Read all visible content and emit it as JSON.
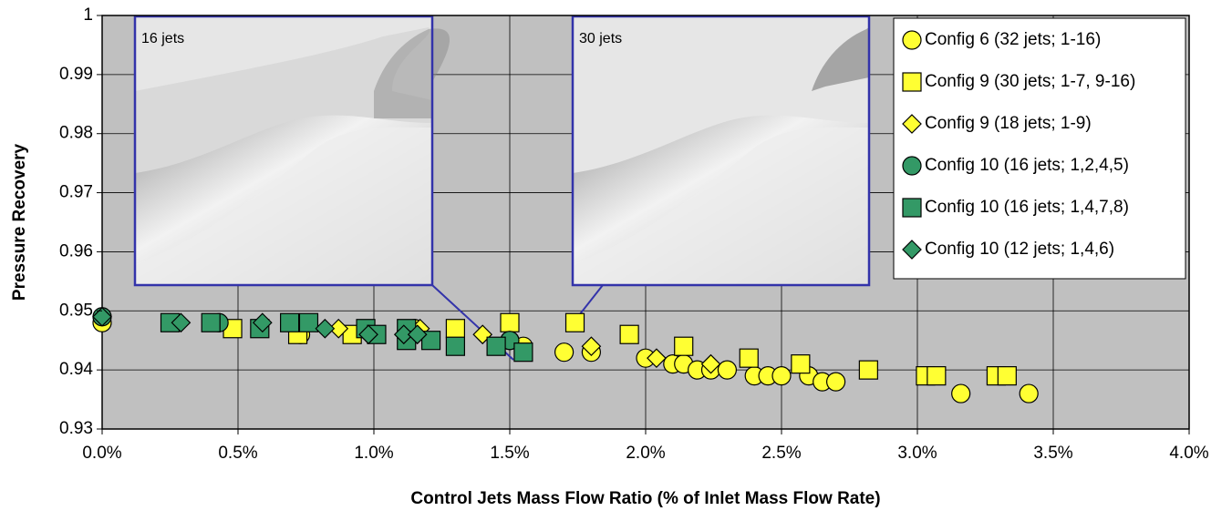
{
  "chart_data": {
    "type": "scatter",
    "x_label": "Control Jets Mass Flow Ratio (% of Inlet Mass Flow Rate)",
    "y_label": "Pressure Recovery",
    "xlim": [
      0,
      4
    ],
    "ylim": [
      0.93,
      1
    ],
    "xticks": [
      {
        "value": 0,
        "label": "0.0%"
      },
      {
        "value": 0.5,
        "label": "0.5%"
      },
      {
        "value": 1,
        "label": "1.0%"
      },
      {
        "value": 1.5,
        "label": "1.5%"
      },
      {
        "value": 2,
        "label": "2.0%"
      },
      {
        "value": 2.5,
        "label": "2.5%"
      },
      {
        "value": 3,
        "label": "3.0%"
      },
      {
        "value": 3.5,
        "label": "3.5%"
      },
      {
        "value": 4,
        "label": "4.0%"
      }
    ],
    "yticks": [
      0.93,
      0.94,
      0.95,
      0.96,
      0.97,
      0.98,
      0.99,
      1
    ],
    "grid": true,
    "legend": "upper right",
    "insets": [
      "16 jets",
      "30 jets"
    ],
    "series": [
      {
        "name": "Config 6 (32 jets; 1-16)",
        "color": "#ffff33",
        "marker": "circle",
        "x": [
          0,
          0.73,
          1.15,
          1.5,
          1.55,
          1.7,
          1.8,
          2.0,
          2.1,
          2.14,
          2.19,
          2.24,
          2.3,
          2.4,
          2.45,
          2.5,
          2.6,
          2.65,
          2.7,
          3.16,
          3.41
        ],
        "values": [
          0.948,
          0.946,
          0.947,
          0.945,
          0.944,
          0.943,
          0.943,
          0.942,
          0.941,
          0.941,
          0.94,
          0.94,
          0.94,
          0.939,
          0.939,
          0.939,
          0.939,
          0.938,
          0.938,
          0.936,
          0.936
        ]
      },
      {
        "name": "Config 9 (30 jets; 1-7, 9-16)",
        "color": "#ffff33",
        "marker": "square",
        "x": [
          0.48,
          0.72,
          0.92,
          1.3,
          1.5,
          1.74,
          1.94,
          2.14,
          2.38,
          2.57,
          2.82,
          3.03,
          3.07,
          3.29,
          3.33
        ],
        "values": [
          0.947,
          0.946,
          0.946,
          0.947,
          0.948,
          0.948,
          0.946,
          0.944,
          0.942,
          0.941,
          0.94,
          0.939,
          0.939,
          0.939,
          0.939
        ]
      },
      {
        "name": "Config 9 (18 jets; 1-9)",
        "color": "#ffff33",
        "marker": "diamond",
        "x": [
          0.87,
          1.17,
          1.4,
          1.8,
          2.04,
          2.24
        ],
        "values": [
          0.947,
          0.947,
          0.946,
          0.944,
          0.942,
          0.941
        ]
      },
      {
        "name": "Config 10 (16 jets; 1,2,4,5)",
        "color": "#339966",
        "marker": "circle",
        "x": [
          0,
          0.43,
          1.5
        ],
        "values": [
          0.949,
          0.948,
          0.945
        ]
      },
      {
        "name": "Config 10 (16 jets; 1,4,7,8)",
        "color": "#339966",
        "marker": "square",
        "x": [
          0.25,
          0.4,
          0.58,
          0.69,
          0.76,
          0.97,
          1.01,
          1.12,
          1.12,
          1.21,
          1.3,
          1.45,
          1.55
        ],
        "values": [
          0.948,
          0.948,
          0.947,
          0.948,
          0.948,
          0.947,
          0.946,
          0.947,
          0.945,
          0.945,
          0.944,
          0.944,
          0.943
        ]
      },
      {
        "name": "Config 10 (12 jets; 1,4,6)",
        "color": "#339966",
        "marker": "diamond",
        "x": [
          0,
          0.29,
          0.59,
          0.82,
          0.98,
          1.11,
          1.16
        ],
        "values": [
          0.949,
          0.948,
          0.948,
          0.947,
          0.946,
          0.946,
          0.946
        ]
      }
    ]
  }
}
